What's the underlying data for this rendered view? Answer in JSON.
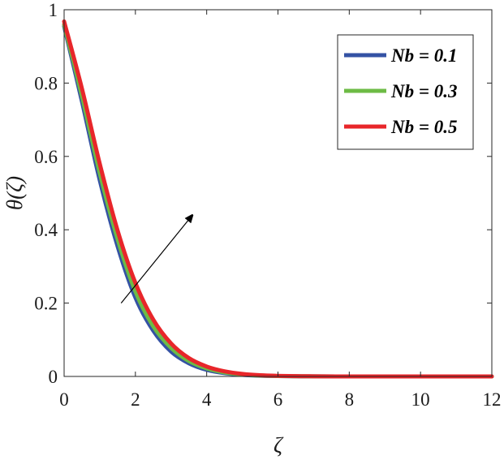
{
  "chart_data": {
    "type": "line",
    "title": "",
    "xlabel": "ζ",
    "ylabel": "θ(ζ)",
    "xlim": [
      0,
      12
    ],
    "ylim": [
      0,
      1
    ],
    "x_ticks": [
      0,
      2,
      4,
      6,
      8,
      10,
      12
    ],
    "y_ticks": [
      0,
      0.2,
      0.4,
      0.6,
      0.8,
      1
    ],
    "x_tick_labels": [
      "0",
      "2",
      "4",
      "6",
      "8",
      "10",
      "12"
    ],
    "y_tick_labels": [
      "0",
      "0.2",
      "0.4",
      "0.6",
      "0.8",
      "1"
    ],
    "grid": false,
    "legend_position": "top-right",
    "x": [
      0,
      0.5,
      1,
      1.5,
      2,
      2.5,
      3,
      3.5,
      4,
      4.5,
      5,
      5.5,
      6,
      6.5,
      7,
      8,
      9,
      10,
      11,
      12
    ],
    "series": [
      {
        "name": "Nb = 0.1",
        "color": "#3452a4",
        "values": [
          0.955,
          0.75,
          0.535,
          0.355,
          0.215,
          0.125,
          0.068,
          0.036,
          0.018,
          0.009,
          0.0045,
          0.002,
          0.001,
          0.0005,
          0.0002,
          0.0,
          0.0,
          0.0,
          0.0,
          0.0
        ]
      },
      {
        "name": "Nb = 0.3",
        "color": "#6dbb45",
        "values": [
          0.96,
          0.765,
          0.555,
          0.375,
          0.232,
          0.137,
          0.078,
          0.042,
          0.022,
          0.011,
          0.0055,
          0.0025,
          0.0012,
          0.0006,
          0.0003,
          0.0,
          0.0,
          0.0,
          0.0,
          0.0
        ]
      },
      {
        "name": "Nb = 0.5",
        "color": "#e8262a",
        "values": [
          0.968,
          0.785,
          0.58,
          0.398,
          0.255,
          0.155,
          0.09,
          0.05,
          0.027,
          0.014,
          0.007,
          0.0033,
          0.0016,
          0.0008,
          0.0004,
          0.0,
          0.0,
          0.0,
          0.0,
          0.0
        ]
      }
    ],
    "annotations": [
      {
        "type": "arrow",
        "from": [
          1.6,
          0.2
        ],
        "to": [
          3.6,
          0.44
        ],
        "color": "#000000"
      }
    ]
  }
}
